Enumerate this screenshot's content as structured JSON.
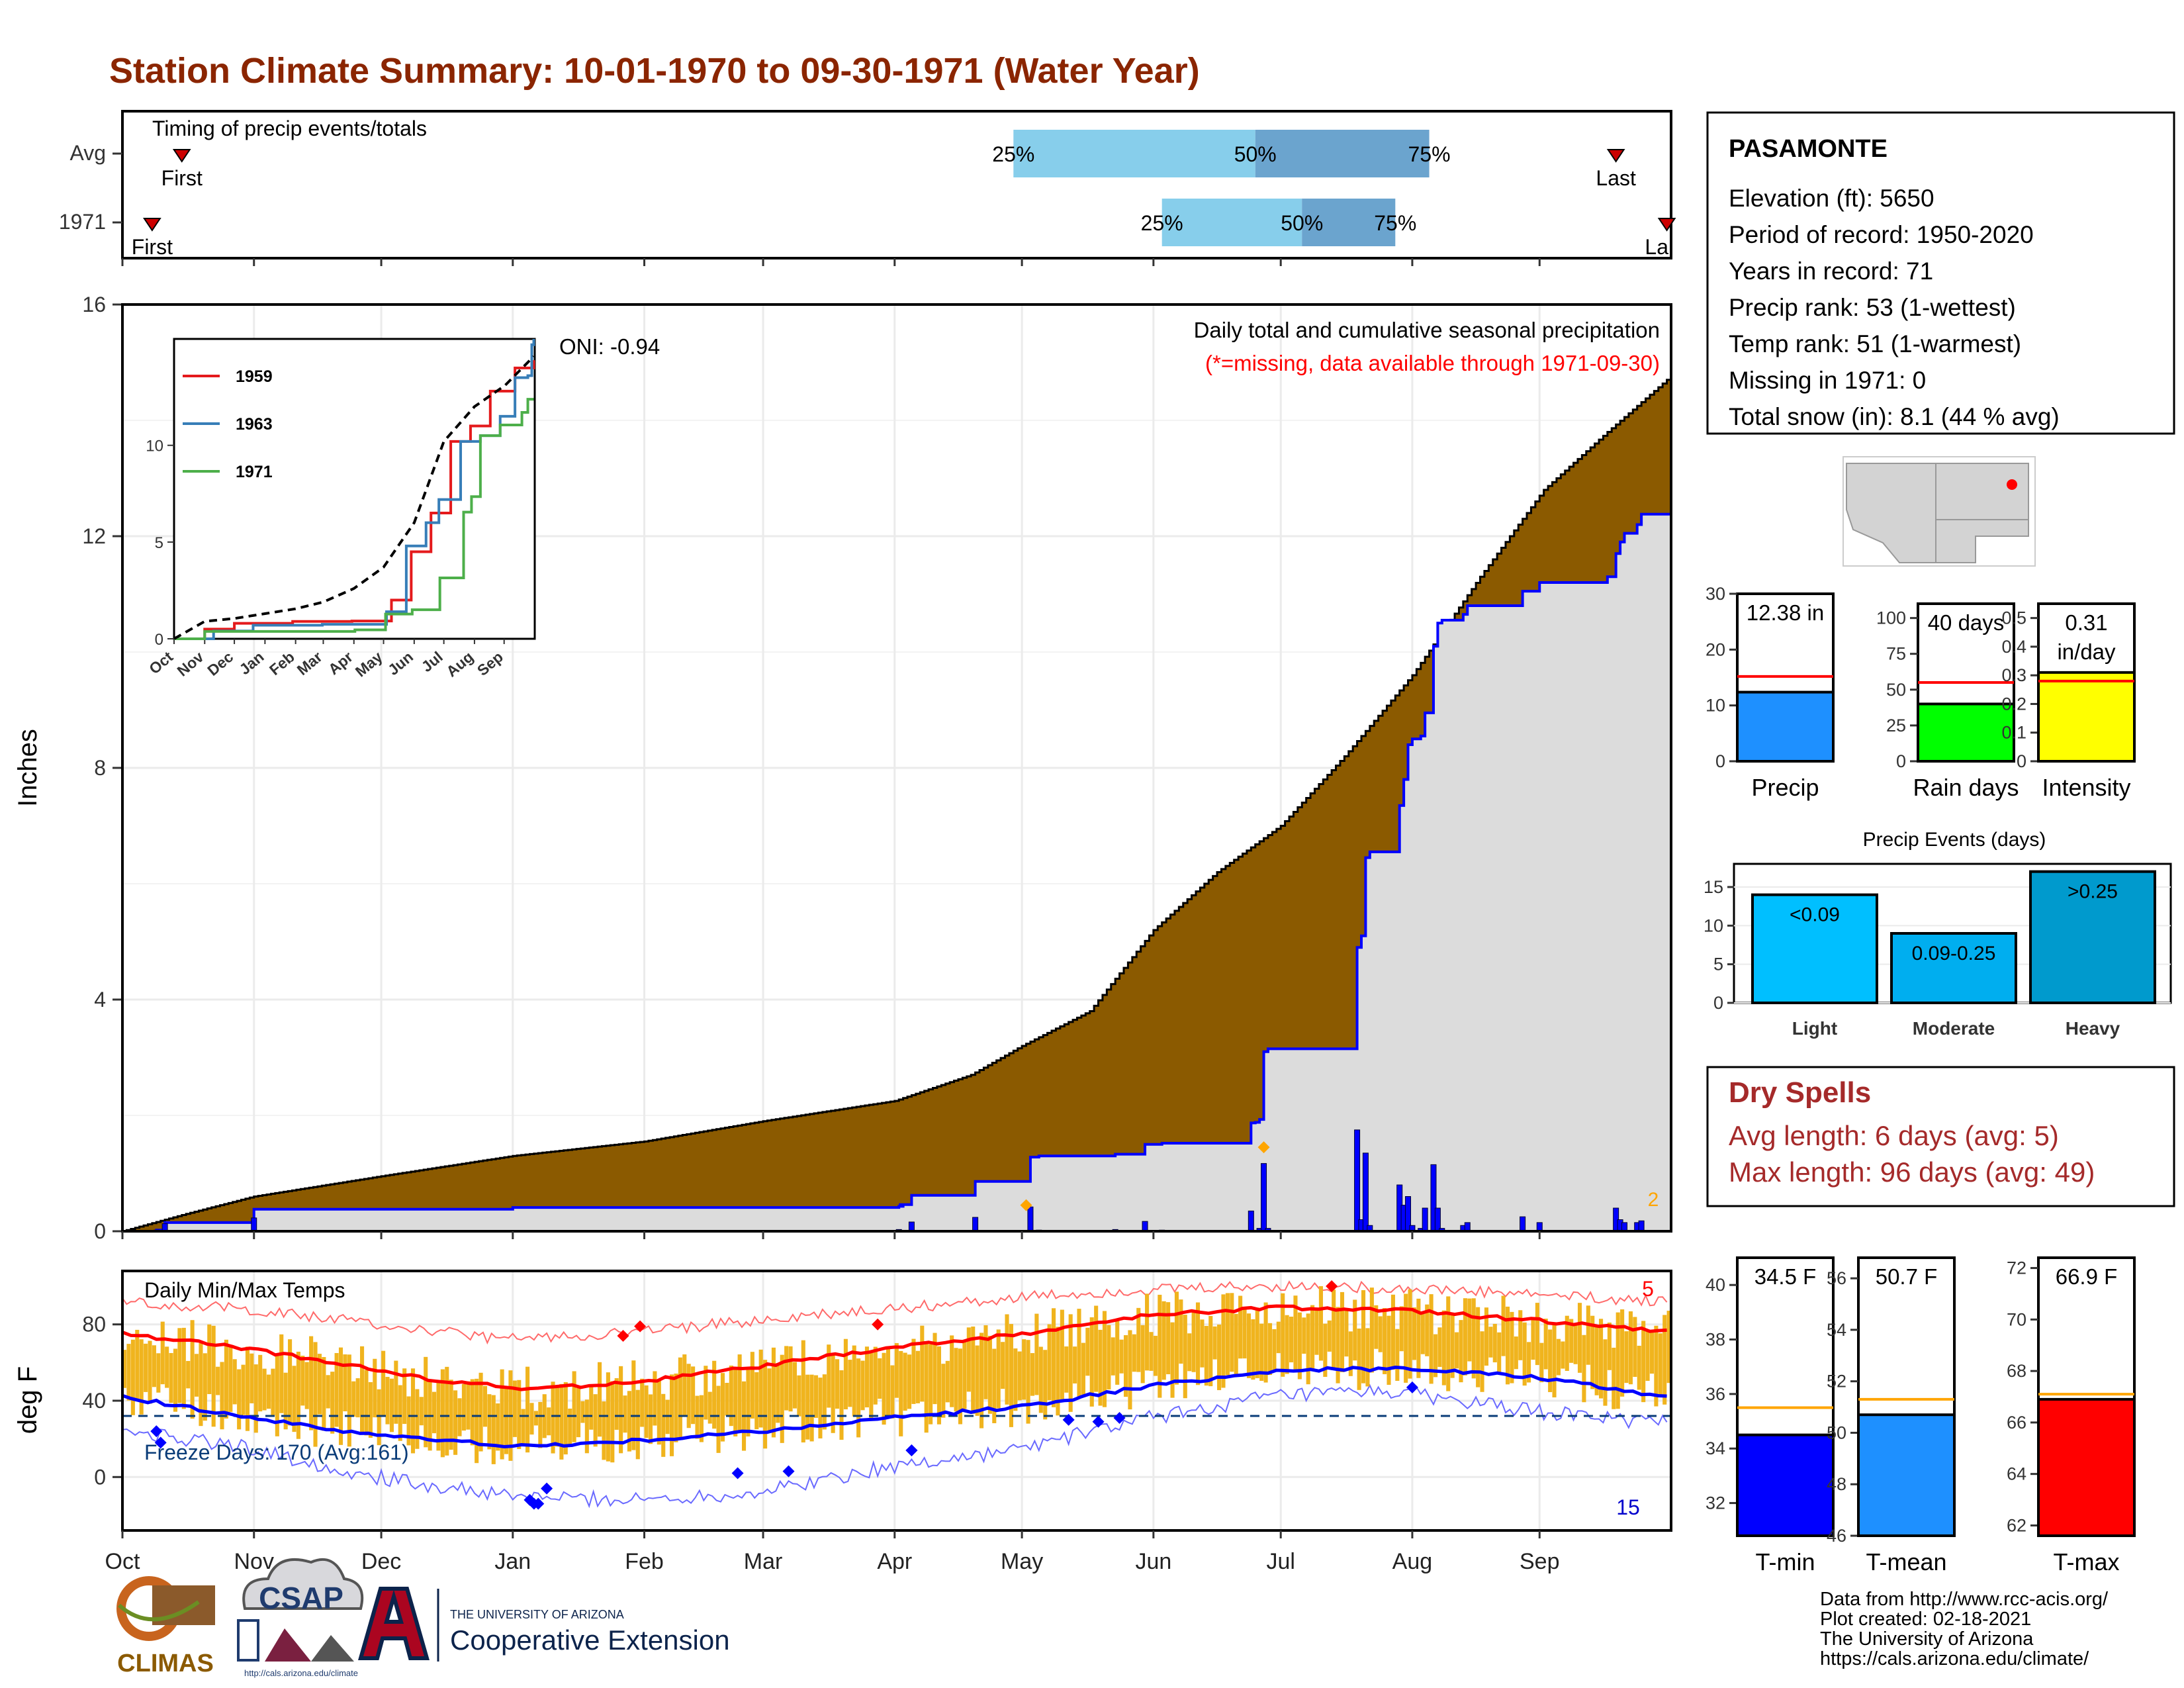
{
  "title": "Station Climate Summary: 10-01-1970 to 09-30-1971 (Water Year)",
  "colors": {
    "title": "#8B2500",
    "brown": "#8B5A00",
    "blue": "#0000FF",
    "gold": "#F0B41E",
    "red": "#FF0000",
    "gray_fill": "#DCDCDC",
    "dryspell": "#A52A2A"
  },
  "months": [
    "Oct",
    "Nov",
    "Dec",
    "Jan",
    "Feb",
    "Mar",
    "Apr",
    "May",
    "Jun",
    "Jul",
    "Aug",
    "Sep"
  ],
  "timing": {
    "label": "Timing of precip events/totals",
    "rows": [
      {
        "name": "Avg",
        "first_label": "First",
        "last_label": "Last",
        "first_doy": 14,
        "last_doy": 352,
        "p25": 210,
        "p50": 267,
        "p75": 308,
        "p25_label": "25%",
        "p50_label": "50%",
        "p75_label": "75%"
      },
      {
        "name": "1971",
        "first_label": "First",
        "last_label": "Last",
        "first_doy": 7,
        "last_doy": 364,
        "p25": 245,
        "p50": 278,
        "p75": 300,
        "p25_label": "25%",
        "p50_label": "50%",
        "p75_label": "75%"
      }
    ]
  },
  "precip": {
    "ylabel": "Inches",
    "oni": "ONI: -0.94",
    "header": "Daily total and cumulative seasonal precipitation",
    "missing_note": "(*=missing, data available through 1971-09-30)",
    "corner_count": "2",
    "ylim": [
      0,
      16
    ],
    "yticks": [
      0,
      4,
      8,
      12,
      16
    ],
    "avg_cum": [
      [
        0,
        0
      ],
      [
        15,
        0.3
      ],
      [
        31,
        0.6
      ],
      [
        61,
        0.95
      ],
      [
        92,
        1.3
      ],
      [
        123,
        1.55
      ],
      [
        151,
        1.9
      ],
      [
        182,
        2.25
      ],
      [
        200,
        2.7
      ],
      [
        212,
        3.2
      ],
      [
        228,
        3.8
      ],
      [
        243,
        5.2
      ],
      [
        258,
        6.2
      ],
      [
        273,
        7.0
      ],
      [
        288,
        8.2
      ],
      [
        304,
        9.6
      ],
      [
        320,
        11.3
      ],
      [
        335,
        12.8
      ],
      [
        350,
        13.8
      ],
      [
        364,
        14.7
      ]
    ],
    "yr_cum": [
      [
        0,
        0
      ],
      [
        8,
        0.02
      ],
      [
        10,
        0.15
      ],
      [
        30,
        0.15
      ],
      [
        31,
        0.38
      ],
      [
        92,
        0.41
      ],
      [
        183,
        0.43
      ],
      [
        184,
        0.46
      ],
      [
        183,
        0.46
      ],
      [
        185,
        0.46
      ],
      [
        186,
        0.62
      ],
      [
        200,
        0.62
      ],
      [
        201,
        0.86
      ],
      [
        213,
        0.86
      ],
      [
        214,
        1.28
      ],
      [
        215,
        1.28
      ],
      [
        216,
        1.3
      ],
      [
        233,
        1.3
      ],
      [
        234,
        1.33
      ],
      [
        240,
        1.33
      ],
      [
        241,
        1.5
      ],
      [
        244,
        1.5
      ],
      [
        245,
        1.52
      ],
      [
        265,
        1.52
      ],
      [
        266,
        1.87
      ],
      [
        267,
        1.88
      ],
      [
        268,
        1.93
      ],
      [
        269,
        3.1
      ],
      [
        270,
        3.15
      ],
      [
        290,
        3.15
      ],
      [
        291,
        4.9
      ],
      [
        292,
        5.1
      ],
      [
        293,
        6.45
      ],
      [
        294,
        6.55
      ],
      [
        300,
        6.55
      ],
      [
        301,
        7.35
      ],
      [
        302,
        7.8
      ],
      [
        303,
        8.4
      ],
      [
        304,
        8.5
      ],
      [
        306,
        8.55
      ],
      [
        307,
        8.95
      ],
      [
        309,
        10.1
      ],
      [
        310,
        10.5
      ],
      [
        311,
        10.55
      ],
      [
        315,
        10.55
      ],
      [
        316,
        10.65
      ],
      [
        317,
        10.8
      ],
      [
        328,
        10.8
      ],
      [
        330,
        11.05
      ],
      [
        334,
        11.2
      ],
      [
        335,
        11.2
      ],
      [
        350,
        11.3
      ],
      [
        352,
        11.7
      ],
      [
        353,
        11.9
      ],
      [
        354,
        12.05
      ],
      [
        357,
        12.2
      ],
      [
        358,
        12.38
      ],
      [
        364,
        12.38
      ]
    ],
    "daily": [
      [
        8,
        0.02
      ],
      [
        10,
        0.13
      ],
      [
        31,
        0.23
      ],
      [
        183,
        0.03
      ],
      [
        186,
        0.16
      ],
      [
        201,
        0.24
      ],
      [
        214,
        0.42
      ],
      [
        216,
        0.02
      ],
      [
        234,
        0.03
      ],
      [
        241,
        0.17
      ],
      [
        245,
        0.02
      ],
      [
        266,
        0.35
      ],
      [
        267,
        0.01
      ],
      [
        268,
        0.05
      ],
      [
        269,
        1.17
      ],
      [
        270,
        0.05
      ],
      [
        291,
        1.75
      ],
      [
        292,
        0.2
      ],
      [
        293,
        1.35
      ],
      [
        294,
        0.1
      ],
      [
        301,
        0.8
      ],
      [
        302,
        0.45
      ],
      [
        303,
        0.6
      ],
      [
        304,
        0.1
      ],
      [
        306,
        0.05
      ],
      [
        307,
        0.4
      ],
      [
        309,
        1.15
      ],
      [
        310,
        0.4
      ],
      [
        311,
        0.05
      ],
      [
        316,
        0.1
      ],
      [
        317,
        0.15
      ],
      [
        330,
        0.25
      ],
      [
        334,
        0.15
      ],
      [
        352,
        0.4
      ],
      [
        353,
        0.2
      ],
      [
        354,
        0.15
      ],
      [
        357,
        0.15
      ],
      [
        358,
        0.18
      ]
    ],
    "inset": {
      "yticks": [
        0,
        5,
        10
      ],
      "ylim": [
        0,
        15.5
      ],
      "legend": [
        "1959",
        "1963",
        "1971"
      ],
      "series_1959": [
        [
          0,
          0
        ],
        [
          31,
          0.5
        ],
        [
          61,
          0.8
        ],
        [
          120,
          0.9
        ],
        [
          180,
          0.92
        ],
        [
          220,
          2.0
        ],
        [
          240,
          4.5
        ],
        [
          260,
          6.5
        ],
        [
          280,
          10.2
        ],
        [
          300,
          11.0
        ],
        [
          320,
          12.8
        ],
        [
          345,
          14.0
        ],
        [
          364,
          14.4
        ]
      ],
      "series_1963": [
        [
          0,
          0
        ],
        [
          40,
          0.4
        ],
        [
          80,
          0.7
        ],
        [
          150,
          0.75
        ],
        [
          215,
          1.4
        ],
        [
          235,
          4.8
        ],
        [
          255,
          6.0
        ],
        [
          268,
          7.2
        ],
        [
          290,
          10.2
        ],
        [
          310,
          10.5
        ],
        [
          330,
          11.5
        ],
        [
          345,
          13.5
        ],
        [
          358,
          13.6
        ],
        [
          362,
          15.2
        ],
        [
          364,
          15.5
        ]
      ],
      "series_1971": [
        [
          0,
          0
        ],
        [
          31,
          0.38
        ],
        [
          183,
          0.46
        ],
        [
          214,
          1.28
        ],
        [
          241,
          1.5
        ],
        [
          269,
          3.15
        ],
        [
          290,
          3.15
        ],
        [
          293,
          6.55
        ],
        [
          301,
          7.35
        ],
        [
          310,
          10.5
        ],
        [
          330,
          11.05
        ],
        [
          352,
          11.7
        ],
        [
          358,
          12.38
        ],
        [
          364,
          12.38
        ]
      ],
      "series_avg": [
        [
          0,
          0
        ],
        [
          31,
          0.9
        ],
        [
          61,
          1.05
        ],
        [
          92,
          1.3
        ],
        [
          123,
          1.55
        ],
        [
          151,
          1.9
        ],
        [
          182,
          2.6
        ],
        [
          212,
          3.7
        ],
        [
          243,
          6.0
        ],
        [
          273,
          10.2
        ],
        [
          304,
          12.0
        ],
        [
          335,
          13.1
        ],
        [
          364,
          14.6
        ]
      ]
    },
    "markers": [
      {
        "doy": 269,
        "value": 1.45,
        "label": ""
      },
      {
        "doy": 213,
        "value": 0.45,
        "label": ""
      }
    ]
  },
  "temps": {
    "ylabel": "deg F",
    "label": "Daily Min/Max Temps",
    "freeze": "Freeze Days: 170 (Avg:161)",
    "hot_count": "5",
    "cold_count": "15",
    "ylim": [
      -28,
      108
    ],
    "yticks": [
      0,
      40,
      80
    ],
    "freeze_line": 32,
    "avg_max": [
      [
        0,
        75
      ],
      [
        20,
        70
      ],
      [
        45,
        62
      ],
      [
        70,
        52
      ],
      [
        95,
        46
      ],
      [
        122,
        50
      ],
      [
        150,
        58
      ],
      [
        182,
        68
      ],
      [
        212,
        75
      ],
      [
        243,
        85
      ],
      [
        273,
        89
      ],
      [
        304,
        87
      ],
      [
        334,
        82
      ],
      [
        364,
        76
      ]
    ],
    "avg_min": [
      [
        0,
        42
      ],
      [
        20,
        35
      ],
      [
        45,
        26
      ],
      [
        70,
        20
      ],
      [
        95,
        16
      ],
      [
        122,
        19
      ],
      [
        150,
        24
      ],
      [
        182,
        31
      ],
      [
        212,
        37
      ],
      [
        243,
        48
      ],
      [
        273,
        56
      ],
      [
        304,
        57
      ],
      [
        334,
        52
      ],
      [
        364,
        42
      ]
    ],
    "rec_max": [
      [
        0,
        92
      ],
      [
        30,
        88
      ],
      [
        60,
        80
      ],
      [
        90,
        72
      ],
      [
        120,
        76
      ],
      [
        150,
        82
      ],
      [
        180,
        88
      ],
      [
        210,
        94
      ],
      [
        240,
        98
      ],
      [
        270,
        100
      ],
      [
        300,
        99
      ],
      [
        330,
        96
      ],
      [
        364,
        92
      ]
    ],
    "rec_min": [
      [
        0,
        25
      ],
      [
        30,
        15
      ],
      [
        60,
        0
      ],
      [
        90,
        -10
      ],
      [
        120,
        -12
      ],
      [
        150,
        -8
      ],
      [
        180,
        5
      ],
      [
        210,
        14
      ],
      [
        240,
        30
      ],
      [
        270,
        42
      ],
      [
        300,
        45
      ],
      [
        330,
        35
      ],
      [
        364,
        28
      ]
    ]
  },
  "station_info": {
    "name": "PASAMONTE",
    "lines": [
      "Elevation (ft): 5650",
      "Period of record: 1950-2020",
      "Years in record: 71",
      "Precip rank: 53 (1-wettest)",
      "Temp rank: 51 (1-warmest)",
      "Missing in 1971: 0",
      "Total snow (in): 8.1 (44 % avg)"
    ]
  },
  "mini_bars": [
    {
      "title": "Precip",
      "value_label": "12.38 in",
      "value": 12.38,
      "avg": 15.2,
      "ylim": [
        0,
        30
      ],
      "yticks": [
        0,
        10,
        20,
        30
      ],
      "color": "#1E90FF"
    },
    {
      "title": "Rain days",
      "value_label": "40 days",
      "value": 40,
      "avg": 55,
      "ylim": [
        0,
        110
      ],
      "yticks": [
        0,
        25,
        50,
        75,
        100
      ],
      "color": "#00FF00"
    },
    {
      "title": "Intensity",
      "value_label": "0.31\nin/day",
      "value": 0.31,
      "avg": 0.28,
      "ylim": [
        0,
        0.55
      ],
      "yticks": [
        0.0,
        0.1,
        0.2,
        0.3,
        0.4,
        0.5
      ],
      "color": "#FFFF00"
    }
  ],
  "precip_events": {
    "title": "Precip Events (days)",
    "ylim": [
      0,
      18
    ],
    "yticks": [
      0,
      5,
      10,
      15
    ],
    "bars": [
      {
        "name": "Light",
        "label": "<0.09",
        "value": 14,
        "color": "#00BFFF"
      },
      {
        "name": "Moderate",
        "label": "0.09-0.25",
        "value": 9,
        "color": "#00AEEF"
      },
      {
        "name": "Heavy",
        "label": ">0.25",
        "value": 17,
        "color": "#009ACD"
      }
    ]
  },
  "dry_spells": {
    "title": "Dry Spells",
    "avg_line": "Avg length: 6 days (avg: 5)",
    "max_line": "Max length: 96 days (avg: 49)"
  },
  "temp_bars": [
    {
      "title": "T-min",
      "value_label": "34.5 F",
      "value": 34.5,
      "avg": 35.5,
      "ylim": [
        30.8,
        41
      ],
      "yticks": [
        32,
        34,
        36,
        38,
        40
      ],
      "color": "#0000FF"
    },
    {
      "title": "T-mean",
      "value_label": "50.7 F",
      "value": 50.7,
      "avg": 51.3,
      "ylim": [
        46,
        56.8
      ],
      "yticks": [
        46,
        48,
        50,
        52,
        54,
        56
      ],
      "color": "#1E90FF"
    },
    {
      "title": "T-max",
      "value_label": "66.9 F",
      "value": 66.9,
      "avg": 67.1,
      "ylim": [
        61.6,
        72.4
      ],
      "yticks": [
        62,
        64,
        66,
        68,
        70,
        72
      ],
      "color": "#FF0000"
    }
  ],
  "footer": {
    "lines": [
      "Data from http://www.rcc-acis.org/",
      "Plot created: 02-18-2021",
      "The University of Arizona",
      "https://cals.arizona.edu/climate/"
    ]
  },
  "logos": {
    "climas": "CLIMAS",
    "csap": "CSAP",
    "csap_url": "http://cals.arizona.edu/climate",
    "ua_small": "THE UNIVERSITY OF ARIZONA",
    "ua_big": "Cooperative Extension"
  }
}
